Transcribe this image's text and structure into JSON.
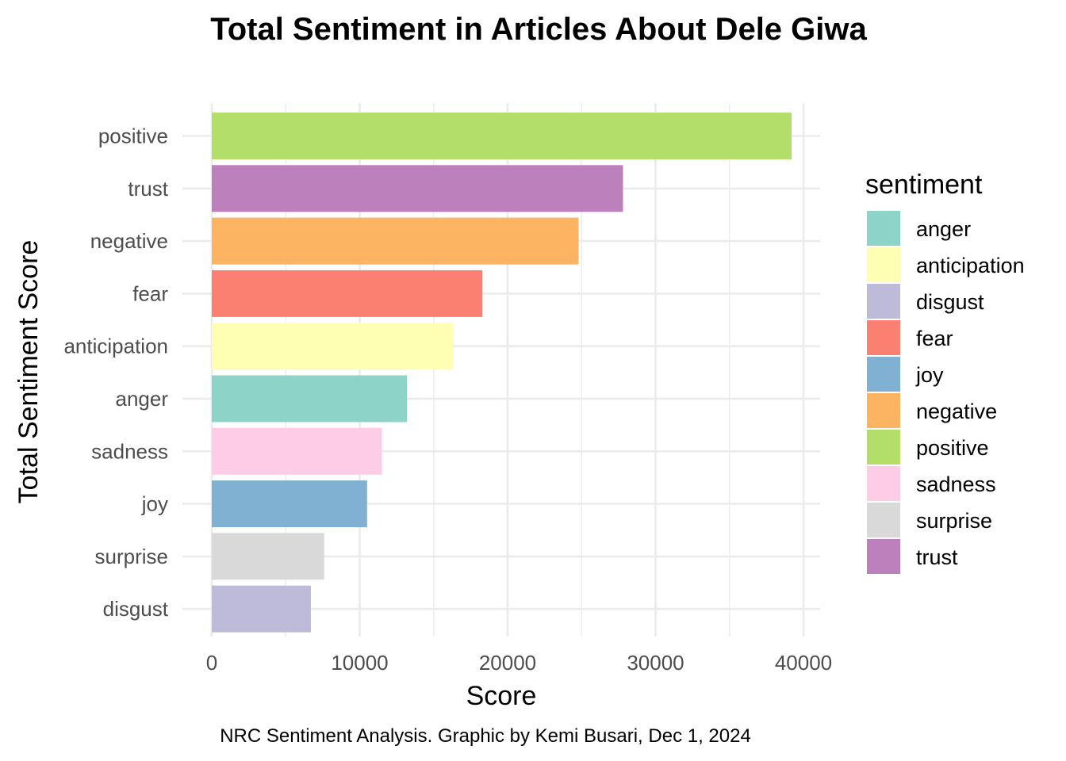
{
  "chart_data": {
    "type": "bar",
    "orientation": "horizontal",
    "title": "Total Sentiment in Articles About Dele Giwa",
    "xlabel": "Score",
    "ylabel": "Total Sentiment Score",
    "caption": "NRC Sentiment Analysis. Graphic by Kemi Busari, Dec 1, 2024",
    "categories": [
      "positive",
      "trust",
      "negative",
      "fear",
      "anticipation",
      "anger",
      "sadness",
      "joy",
      "surprise",
      "disgust"
    ],
    "values": [
      39200,
      27800,
      24800,
      18300,
      16300,
      13200,
      11500,
      10500,
      7600,
      6700
    ],
    "colors": {
      "anger": "#8DD3C7",
      "anticipation": "#FFFFB3",
      "disgust": "#BEBADA",
      "fear": "#FB8072",
      "joy": "#80B1D3",
      "negative": "#FDB462",
      "positive": "#B3DE69",
      "sadness": "#FCCDE5",
      "surprise": "#D9D9D9",
      "trust": "#BC80BD"
    },
    "xlim": [
      0,
      41000
    ],
    "xticks": [
      0,
      10000,
      20000,
      30000,
      40000
    ],
    "xtick_labels": [
      "0",
      "10000",
      "20000",
      "30000",
      "40000"
    ],
    "grid": true,
    "legend": {
      "title": "sentiment",
      "placement": "right",
      "entries": [
        "anger",
        "anticipation",
        "disgust",
        "fear",
        "joy",
        "negative",
        "positive",
        "sadness",
        "surprise",
        "trust"
      ]
    }
  }
}
